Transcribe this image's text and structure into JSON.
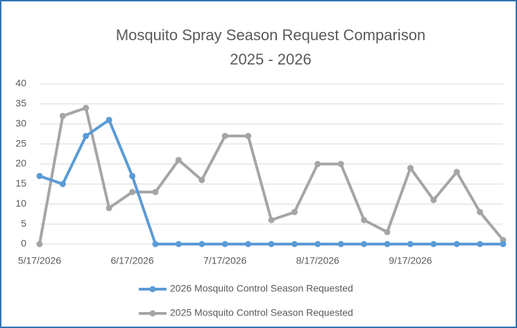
{
  "chart_data": {
    "type": "line",
    "title": "Mosquito Spray Season Request Comparison",
    "subtitle": "2025 - 2026",
    "categories": [
      "5/17/2026",
      null,
      null,
      null,
      "6/17/2026",
      null,
      null,
      null,
      "7/17/2026",
      null,
      null,
      null,
      "8/17/2026",
      null,
      null,
      null,
      "9/17/2026",
      null,
      null,
      null,
      null
    ],
    "series": [
      {
        "name": "2026 Mosquito Control Season Requested",
        "color": "#5b9bd5",
        "values": [
          17,
          15,
          27,
          31,
          17,
          0,
          0,
          0,
          0,
          0,
          0,
          0,
          0,
          0,
          0,
          0,
          0,
          0,
          0,
          0,
          0
        ]
      },
      {
        "name": "2025 Mosquito Control Season Requested",
        "color": "#a5a5a5",
        "values": [
          0,
          32,
          34,
          9,
          13,
          13,
          21,
          16,
          27,
          27,
          6,
          8,
          20,
          20,
          6,
          3,
          19,
          11,
          18,
          8,
          1
        ]
      }
    ],
    "ylim": [
      0,
      40
    ],
    "yticks": [
      0,
      5,
      10,
      15,
      20,
      25,
      30,
      35,
      40
    ],
    "grid": true
  }
}
